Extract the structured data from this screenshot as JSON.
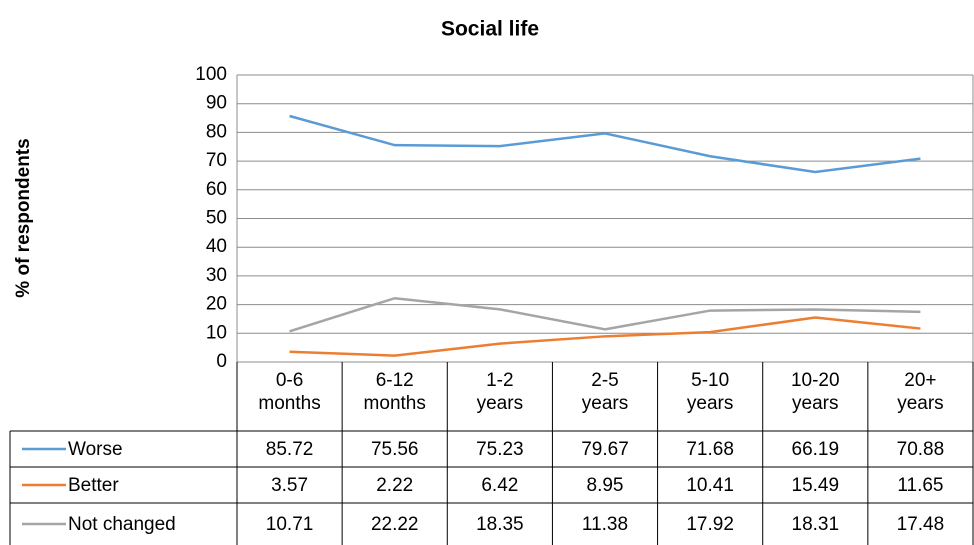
{
  "chart_data": {
    "type": "line",
    "title": "Social life",
    "ylabel": "% of respondents",
    "categories": [
      "0-6 months",
      "6-12 months",
      "1-2 years",
      "2-5 years",
      "5-10 years",
      "10-20 years",
      "20+ years"
    ],
    "series": [
      {
        "name": "Worse",
        "color": "#5b9bd5",
        "values": [
          85.72,
          75.56,
          75.23,
          79.67,
          71.68,
          66.19,
          70.88
        ]
      },
      {
        "name": "Better",
        "color": "#ed7d31",
        "values": [
          3.57,
          2.22,
          6.42,
          8.95,
          10.41,
          15.49,
          11.65
        ]
      },
      {
        "name": "Not changed",
        "color": "#a5a5a5",
        "values": [
          10.71,
          22.22,
          18.35,
          11.38,
          17.92,
          18.31,
          17.48
        ]
      }
    ],
    "ylim": [
      0,
      100
    ],
    "yticks": [
      0,
      10,
      20,
      30,
      40,
      50,
      60,
      70,
      80,
      90,
      100
    ],
    "grid": true
  }
}
